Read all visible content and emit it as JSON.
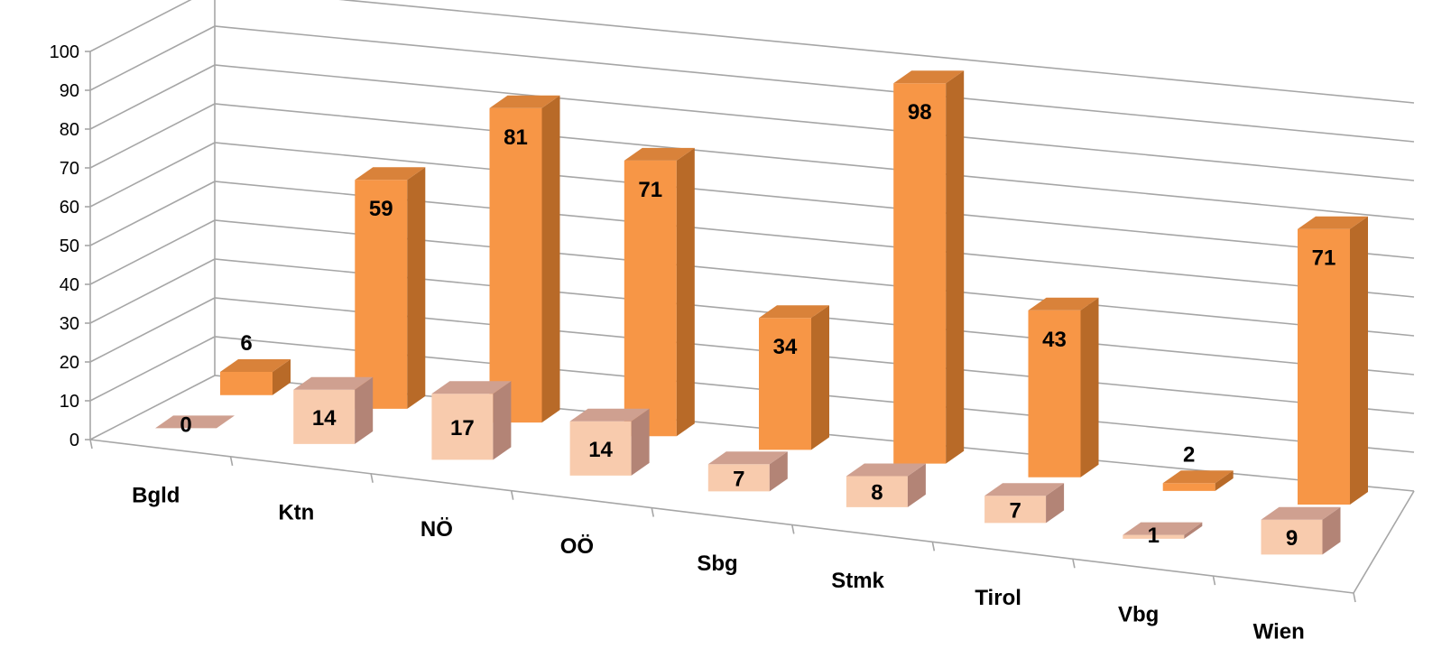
{
  "chart_data": {
    "type": "bar",
    "style": "3d-clustered-columns",
    "categories": [
      "Bgld",
      "Ktn",
      "NÖ",
      "OÖ",
      "Sbg",
      "Stmk",
      "Tirol",
      "Vbg",
      "Wien"
    ],
    "series": [
      {
        "values": [
          0,
          14,
          17,
          14,
          7,
          8,
          7,
          1,
          9
        ],
        "color": "#f8cbad",
        "side_color": "#b38476",
        "top_color": "#cfa090"
      },
      {
        "values": [
          6,
          59,
          81,
          71,
          34,
          98,
          43,
          2,
          71
        ],
        "color": "#f79646",
        "side_color": "#b86a28",
        "top_color": "#d9823a"
      }
    ],
    "y_ticks": [
      "0",
      "10",
      "20",
      "30",
      "40",
      "50",
      "60",
      "70",
      "80",
      "90",
      "100"
    ],
    "ylim": [
      0,
      100
    ],
    "grid": true,
    "legend": "none",
    "data_labels": true
  }
}
